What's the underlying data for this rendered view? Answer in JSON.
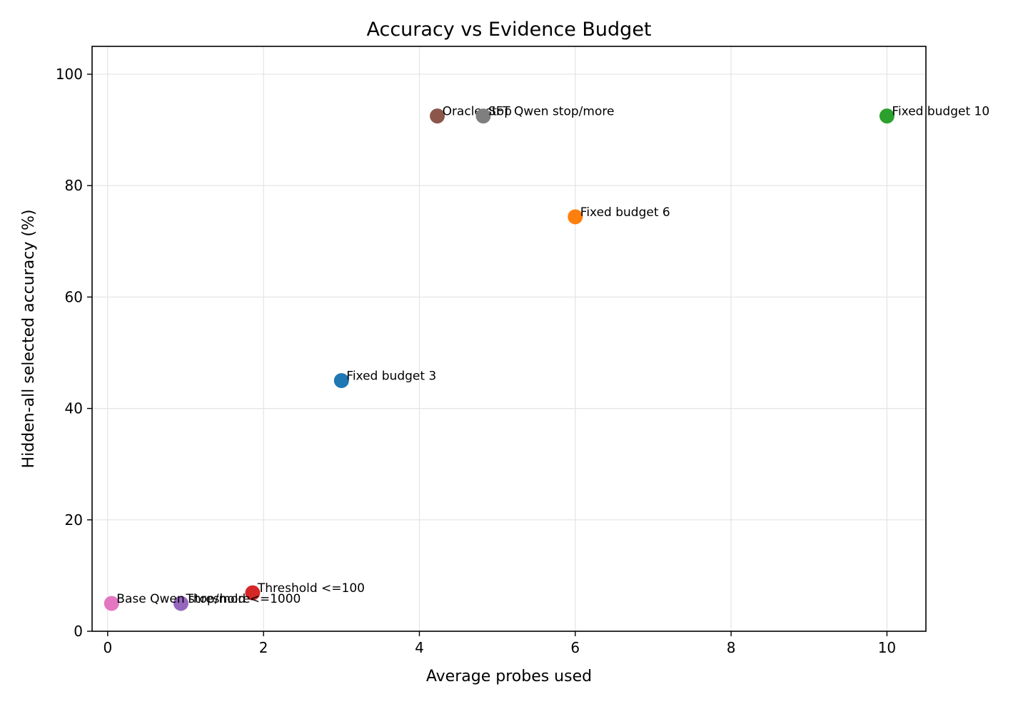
{
  "chart_data": {
    "type": "scatter",
    "title": "Accuracy vs Evidence Budget",
    "xlabel": "Average probes used",
    "ylabel": "Hidden-all selected accuracy (%)",
    "xlim": [
      -0.2,
      10.5
    ],
    "ylim": [
      0,
      105
    ],
    "xticks": [
      0,
      2,
      4,
      6,
      8,
      10
    ],
    "yticks": [
      0,
      20,
      40,
      60,
      80,
      100
    ],
    "grid": true,
    "points": [
      {
        "label": "Fixed budget 3",
        "x": 3.0,
        "y": 45.0,
        "color": "#1f77b4"
      },
      {
        "label": "Fixed budget 6",
        "x": 6.0,
        "y": 74.4,
        "color": "#ff7f0e"
      },
      {
        "label": "Fixed budget 10",
        "x": 10.0,
        "y": 92.5,
        "color": "#2ca02c"
      },
      {
        "label": "Threshold <=100",
        "x": 1.86,
        "y": 6.9,
        "color": "#d62728"
      },
      {
        "label": "Threshold <=1000",
        "x": 0.94,
        "y": 5.0,
        "color": "#9467bd"
      },
      {
        "label": "Oracle stop",
        "x": 4.23,
        "y": 92.5,
        "color": "#8c564b"
      },
      {
        "label": "Base Qwen stop/more",
        "x": 0.05,
        "y": 5.0,
        "color": "#e377c2"
      },
      {
        "label": "SFT Qwen stop/more",
        "x": 4.82,
        "y": 92.5,
        "color": "#7f7f7f"
      }
    ]
  }
}
